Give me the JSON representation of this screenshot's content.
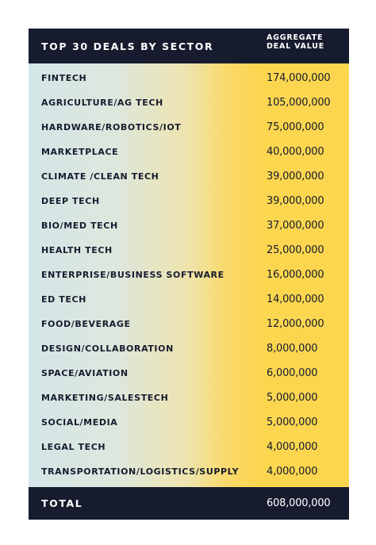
{
  "chart_data": {
    "type": "table",
    "title": "TOP 30 DEALS BY SECTOR",
    "columns": [
      "TOP 30 DEALS BY SECTOR",
      "AGGREGATE DEAL VALUE"
    ],
    "header": {
      "left": "TOP 30 DEALS BY SECTOR",
      "right_line1": "AGGREGATE",
      "right_line2": "DEAL VALUE"
    },
    "rows": [
      {
        "sector": "FINTECH",
        "value": "174,000,000"
      },
      {
        "sector": "AGRICULTURE/AG TECH",
        "value": "105,000,000"
      },
      {
        "sector": "HARDWARE/ROBOTICS/IOT",
        "value": "75,000,000"
      },
      {
        "sector": "MARKETPLACE",
        "value": "40,000,000"
      },
      {
        "sector": "CLIMATE /CLEAN TECH",
        "value": "39,000,000"
      },
      {
        "sector": "DEEP TECH",
        "value": "39,000,000"
      },
      {
        "sector": "BIO/MED TECH",
        "value": "37,000,000"
      },
      {
        "sector": "HEALTH TECH",
        "value": "25,000,000"
      },
      {
        "sector": "ENTERPRISE/BUSINESS SOFTWARE",
        "value": "16,000,000"
      },
      {
        "sector": "ED TECH",
        "value": "14,000,000"
      },
      {
        "sector": "FOOD/BEVERAGE",
        "value": "12,000,000"
      },
      {
        "sector": "DESIGN/COLLABORATION",
        "value": "8,000,000"
      },
      {
        "sector": "SPACE/AVIATION",
        "value": "6,000,000"
      },
      {
        "sector": "MARKETING/SALESTECH",
        "value": "5,000,000"
      },
      {
        "sector": "SOCIAL/MEDIA",
        "value": "5,000,000"
      },
      {
        "sector": "LEGAL TECH",
        "value": "4,000,000"
      },
      {
        "sector": "TRANSPORTATION/LOGISTICS/SUPPLY",
        "value": "4,000,000"
      }
    ],
    "total": {
      "label": "TOTAL",
      "value": "608,000,000"
    },
    "colors": {
      "header_bg": "#161b2e",
      "header_text": "#ffffff",
      "gradient_left": "#d4e6e7",
      "gradient_right": "#fcd64f",
      "body_text": "#161b2e"
    }
  }
}
